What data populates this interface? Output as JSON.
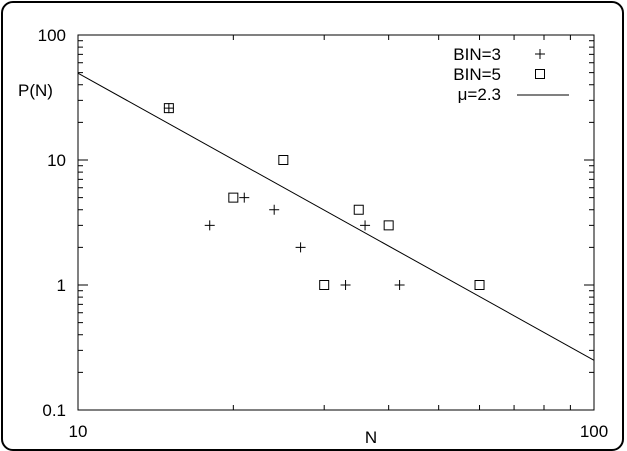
{
  "chart_data": {
    "type": "scatter",
    "xlabel": "N",
    "ylabel": "P(N)",
    "x_scale": "log",
    "y_scale": "log",
    "xlim": [
      10,
      100
    ],
    "ylim": [
      0.1,
      100
    ],
    "x_ticks": [
      {
        "value": 10,
        "label": "10"
      },
      {
        "value": 100,
        "label": "100"
      }
    ],
    "y_ticks": [
      {
        "value": 0.1,
        "label": "0.1"
      },
      {
        "value": 1,
        "label": "1"
      },
      {
        "value": 10,
        "label": "10"
      },
      {
        "value": 100,
        "label": "100"
      }
    ],
    "legend_position": "top-right",
    "series": [
      {
        "name": "BIN=3",
        "marker": "plus",
        "points": [
          {
            "x": 15,
            "y": 26
          },
          {
            "x": 18,
            "y": 3
          },
          {
            "x": 21,
            "y": 5
          },
          {
            "x": 24,
            "y": 4
          },
          {
            "x": 27,
            "y": 2
          },
          {
            "x": 33,
            "y": 1
          },
          {
            "x": 36,
            "y": 3
          },
          {
            "x": 42,
            "y": 1
          }
        ]
      },
      {
        "name": "BIN=5",
        "marker": "square",
        "points": [
          {
            "x": 15,
            "y": 26
          },
          {
            "x": 20,
            "y": 5
          },
          {
            "x": 25,
            "y": 10
          },
          {
            "x": 30,
            "y": 1
          },
          {
            "x": 35,
            "y": 4
          },
          {
            "x": 40,
            "y": 3
          },
          {
            "x": 60,
            "y": 1
          }
        ]
      },
      {
        "name": "μ=2.3",
        "type": "line",
        "exponent": 2.3,
        "points": [
          {
            "x": 10,
            "y": 49.5
          },
          {
            "x": 100,
            "y": 0.25
          }
        ]
      }
    ]
  }
}
